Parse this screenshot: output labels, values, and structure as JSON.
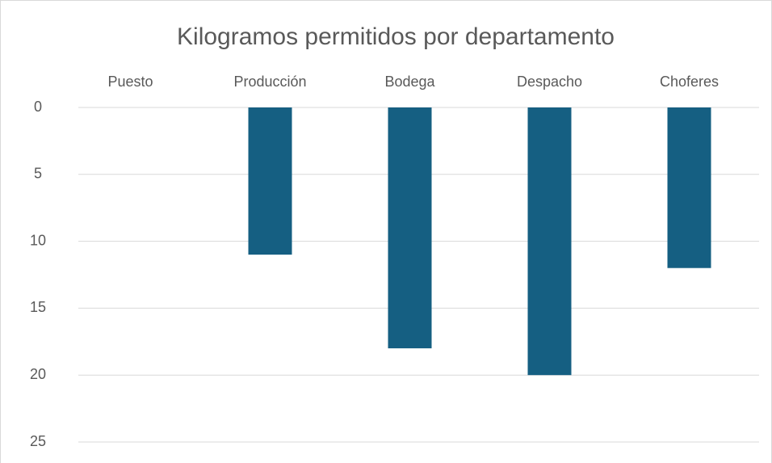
{
  "chart_data": {
    "type": "bar",
    "title": "Kilogramos permitidos por departamento",
    "categories": [
      "Puesto",
      "Producción",
      "Bodega",
      "Despacho",
      "Choferes"
    ],
    "values": [
      null,
      11,
      18,
      20,
      12
    ],
    "color": "#155f82",
    "ylim": [
      0,
      25
    ],
    "yticks": [
      0,
      5,
      10,
      15,
      20,
      25
    ],
    "y_reversed": true,
    "grid": true
  }
}
